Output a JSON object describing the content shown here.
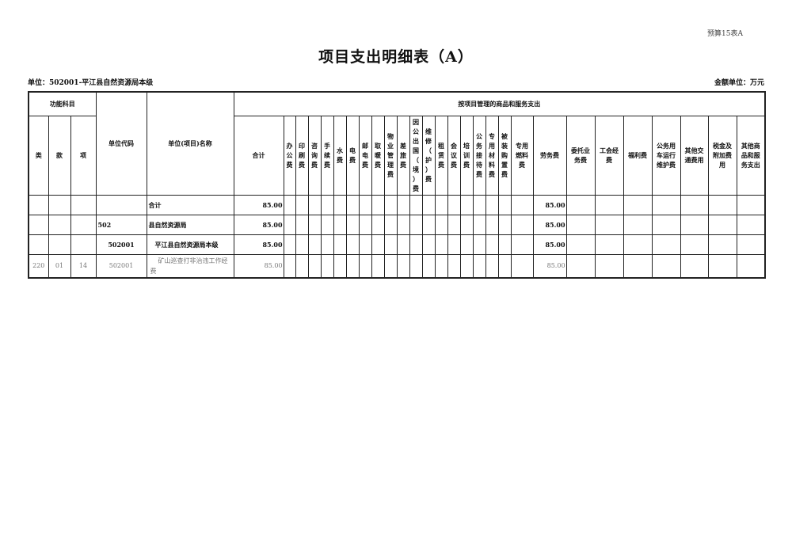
{
  "header": {
    "form_code": "预算15表A",
    "title": "项目支出明细表（A）",
    "unit": "单位：502001-平江县自然资源局本级",
    "money_unit": "金额单位：万元"
  },
  "table": {
    "group_function": "功能科目",
    "group_goods": "按项目管理的商品和服务支出",
    "col_lei": "类",
    "col_kuan": "款",
    "col_xiang": "项",
    "col_code": "单位代码",
    "col_name": "单位(项目)名称",
    "expense_columns": [
      "合计",
      "办公费",
      "印刷费",
      "咨询费",
      "手续费",
      "水费",
      "电费",
      "邮电费",
      "取暖费",
      "物业管理费",
      "差旅费",
      "因公出国（境）费",
      "维修（护）费",
      "租赁费",
      "会议费",
      "培训费",
      "公务接待费",
      "专用材料费",
      "被装购置费",
      "专用燃料费",
      "劳务费",
      "委托业务费",
      "工会经费",
      "福利费",
      "公务用车运行维护费",
      "其他交通费用",
      "税金及附加费用",
      "其他商品和服务支出"
    ],
    "rows": [
      {
        "lei": "",
        "kuan": "",
        "xiang": "",
        "code": "",
        "name": "合计",
        "values": {
          "合计": "85.00",
          "劳务费": "85.00"
        }
      },
      {
        "lei": "",
        "kuan": "",
        "xiang": "",
        "code": "502",
        "name": "县自然资源局",
        "values": {
          "合计": "85.00",
          "劳务费": "85.00"
        }
      },
      {
        "lei": "",
        "kuan": "",
        "xiang": "",
        "code": "502001",
        "name": "平江县自然资源局本级",
        "values": {
          "合计": "85.00",
          "劳务费": "85.00"
        }
      },
      {
        "lei": "220",
        "kuan": "01",
        "xiang": "14",
        "code": "502001",
        "name": "矿山巡查打非治违工作经费",
        "values": {
          "合计": "85.00",
          "劳务费": "85.00"
        }
      }
    ]
  }
}
